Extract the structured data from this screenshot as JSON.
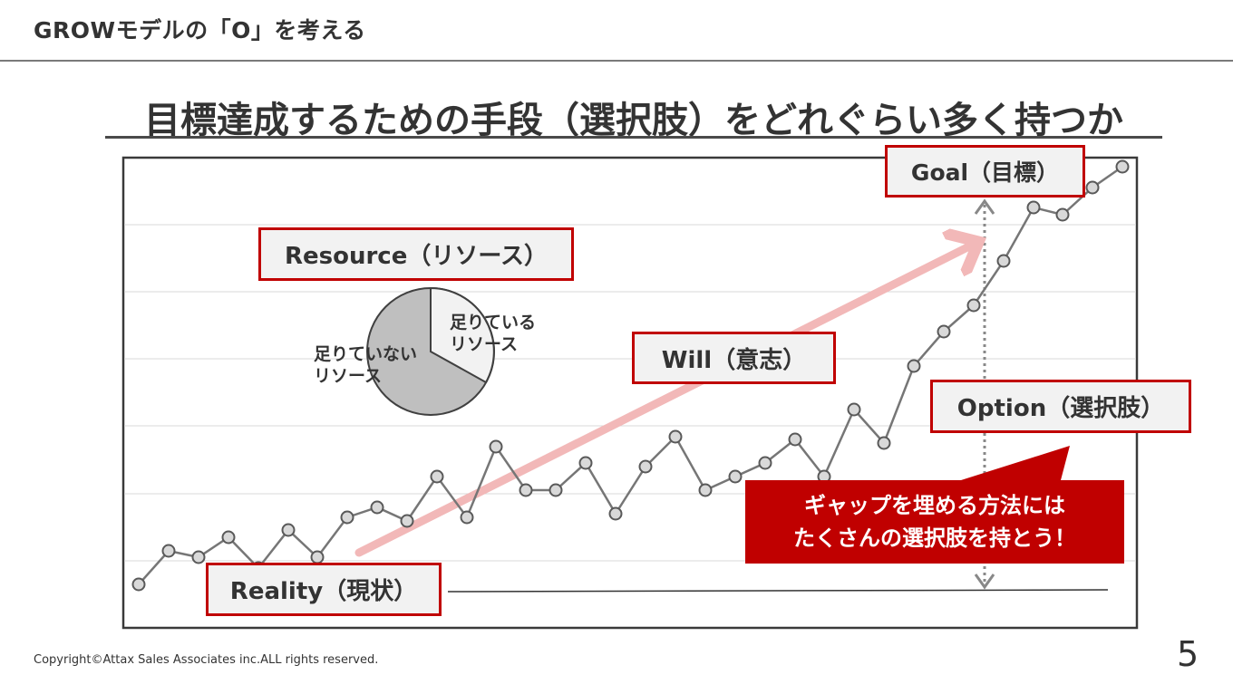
{
  "header": {
    "title": "GROWモデルの「O」を考える"
  },
  "main_title": "目標達成するための手段（選択肢）をどれぐらい多く持つか",
  "labels": {
    "goal": "Goal（目標）",
    "resource": "Resource（リソース）",
    "will": "Will（意志）",
    "option": "Option（選択肢）",
    "reality": "Reality（現状）"
  },
  "pie": {
    "slices": [
      {
        "label_line1": "足りている",
        "label_line2": "リソース",
        "color": "#f2f2f2"
      },
      {
        "label_line1": "足りていない",
        "label_line2": "リソース",
        "color": "#bfbfbf"
      }
    ]
  },
  "callout": {
    "line1": "ギャップを埋める方法には",
    "line2": "たくさんの選択肢を持とう！",
    "color": "#c00000"
  },
  "footer": {
    "copyright": "Copyright©Attax Sales Associates inc.ALL rights reserved."
  },
  "page_number": "5",
  "colors": {
    "accent_red": "#c00000",
    "arrow_pink": "#f2b8b8",
    "line_gray": "#767676",
    "marker_fill": "#d9d9d9"
  }
}
